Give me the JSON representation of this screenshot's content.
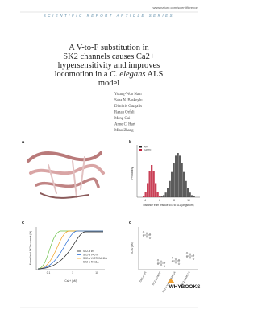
{
  "header": {
    "url": "www.nature.com/scientificreport",
    "series": "SCIENTIFIC REPORT ARTICLE SERIES"
  },
  "title": {
    "line1": "A V-to-F substitution in",
    "line2": "SK2 channels causes Ca2+",
    "line3": "hypersensitivity and improves",
    "line4a": "locomotion in a",
    "line4b": "C. elegans",
    "line4c": "ALS",
    "line5": "model"
  },
  "authors": [
    "Young-Woo Nam",
    "Saba N. Baskoylu",
    "Dimitris Gazgalis",
    "Razan Orfali",
    "Meng Cui",
    "Anne C. Hart",
    "Miao Zhang"
  ],
  "figure": {
    "panels": [
      "a",
      "b",
      "c",
      "d"
    ],
    "b": {
      "legend": [
        "WT",
        "V407F"
      ],
      "xticks": [
        "4",
        "6",
        "8",
        "10"
      ],
      "xlabel": "Distance from residue 407 to 411 (angstrom)",
      "ylabel": "Probability"
    },
    "c": {
      "ylabel": "Normalized SK2-a current (%)",
      "xlabel": "Ca2+ (μM)",
      "xticks": [
        "0.1",
        "1",
        "10"
      ],
      "legend": [
        "SK2-a WT",
        "SK2-a V407F",
        "SK2-a V407F/M411A",
        "SK2-a M411A"
      ]
    },
    "d": {
      "ylabel": "EC50 (μM)",
      "categories": [
        "SK2-a WT",
        "SK2-a V407F",
        "SK2-a V407F/M411A",
        "SK2-a M411A"
      ]
    }
  },
  "logo": "WHYBOOKS"
}
